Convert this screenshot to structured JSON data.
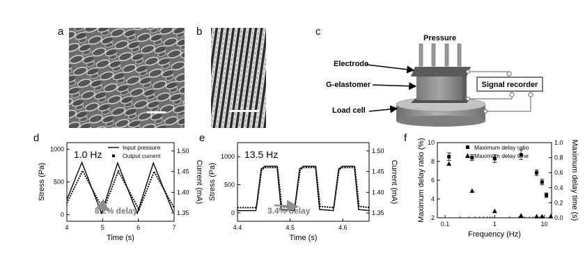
{
  "panels": {
    "a": {
      "letter": "a"
    },
    "b": {
      "letter": "b"
    },
    "c": {
      "letter": "c",
      "labels": {
        "pressure": "Pressure",
        "electrode": "Electrode",
        "g_elastomer": "G-elastomer",
        "load_cell": "Load cell",
        "signal_recorder": "Signal recorder"
      }
    },
    "d": {
      "letter": "d"
    },
    "e": {
      "letter": "e"
    },
    "f": {
      "letter": "f"
    }
  },
  "chart_data": [
    {
      "id": "d",
      "type": "line",
      "annotation_freq": "1.0 Hz",
      "annotation_delay": "8.2% delay",
      "xlabel": "Time (s)",
      "ylabel": "Stress (Pa)",
      "y2label": "Current (mA)",
      "xlim": [
        4,
        7
      ],
      "ylim": [
        -100,
        1100
      ],
      "y2lim": [
        1.33,
        1.52
      ],
      "xticks": [
        "4",
        "5",
        "6",
        "7"
      ],
      "yticks": [
        "0",
        "500",
        "1000"
      ],
      "y2ticks": [
        "1.35",
        "1.40",
        "1.45",
        "1.50"
      ],
      "legend": [
        "Input pressure",
        "Output current"
      ],
      "legend_position": "top-right",
      "series": [
        {
          "name": "Input pressure",
          "axis": "left",
          "style": "solid",
          "x": [
            4.0,
            4.42,
            4.97,
            5.42,
            5.97,
            6.42,
            6.97
          ],
          "y": [
            230,
            800,
            20,
            790,
            20,
            790,
            40
          ]
        },
        {
          "name": "Output current",
          "axis": "right",
          "style": "dotted",
          "x": [
            4.0,
            4.44,
            5.02,
            5.44,
            6.02,
            6.44,
            7.0
          ],
          "y": [
            1.374,
            1.452,
            1.357,
            1.451,
            1.358,
            1.45,
            1.362
          ]
        }
      ]
    },
    {
      "id": "e",
      "type": "line",
      "annotation_freq": "13.5 Hz",
      "annotation_delay": "3.4% delay",
      "xlabel": "Time (s)",
      "ylabel": "Stress (Pa)",
      "y2label": "Current (mA)",
      "xlim": [
        4.4,
        4.65
      ],
      "ylim": [
        -150,
        1250
      ],
      "y2lim": [
        1.33,
        1.52
      ],
      "xticks": [
        "4.4",
        "4.5",
        "4.6"
      ],
      "yticks": [
        "0",
        "500",
        "1000"
      ],
      "y2ticks": [
        "1.35",
        "1.40",
        "1.45",
        "1.50"
      ],
      "series": [
        {
          "name": "Input pressure",
          "axis": "left",
          "style": "solid",
          "x": [
            4.4,
            4.435,
            4.445,
            4.452,
            4.475,
            4.483,
            4.508,
            4.518,
            4.525,
            4.548,
            4.556,
            4.582,
            4.592,
            4.599,
            4.622,
            4.63,
            4.65
          ],
          "y": [
            40,
            40,
            780,
            830,
            830,
            60,
            40,
            780,
            830,
            830,
            60,
            40,
            780,
            830,
            830,
            60,
            40
          ]
        },
        {
          "name": "Output current",
          "axis": "right",
          "style": "dotted",
          "x": [
            4.4,
            4.436,
            4.446,
            4.453,
            4.476,
            4.484,
            4.509,
            4.519,
            4.526,
            4.549,
            4.557,
            4.583,
            4.593,
            4.6,
            4.623,
            4.631,
            4.65
          ],
          "y": [
            1.363,
            1.363,
            1.455,
            1.46,
            1.46,
            1.366,
            1.363,
            1.455,
            1.46,
            1.46,
            1.366,
            1.363,
            1.455,
            1.46,
            1.46,
            1.366,
            1.363
          ]
        }
      ]
    },
    {
      "id": "f",
      "type": "scatter",
      "xlabel": "Frequency (Hz)",
      "ylabel": "Maximum delay ratio (%)",
      "y2label": "Maximum delay time (s)",
      "xscale": "log",
      "xlim": [
        0.07,
        14
      ],
      "ylim": [
        2,
        10
      ],
      "y2lim": [
        0,
        1.0
      ],
      "xticks": [
        "0.1",
        "1",
        "10"
      ],
      "yticks": [
        "2",
        "4",
        "6",
        "8",
        "10"
      ],
      "y2ticks": [
        "0.0",
        "0.2",
        "0.4",
        "0.6",
        "0.8",
        "1.0"
      ],
      "legend": [
        "Maximum delay ratio",
        "Maximum delay time"
      ],
      "legend_position": "top-right",
      "series": [
        {
          "name": "Maximum delay ratio",
          "axis": "left",
          "marker": "square",
          "x": [
            0.12,
            0.35,
            1.0,
            3.4,
            7.0,
            9.0,
            11.0
          ],
          "y": [
            8.5,
            8.4,
            8.3,
            8.7,
            6.8,
            5.8,
            4.4
          ],
          "err": [
            0.4,
            0.3,
            0.4,
            0.5,
            0.3,
            0.3,
            0.25
          ]
        },
        {
          "name": "Maximum delay time",
          "axis": "right",
          "marker": "triangle",
          "x": [
            0.12,
            0.35,
            1.0,
            3.4,
            7.0,
            9.0,
            13.5
          ],
          "y": [
            0.72,
            0.36,
            0.09,
            0.03,
            0.02,
            0.02,
            0.02
          ]
        }
      ]
    }
  ]
}
